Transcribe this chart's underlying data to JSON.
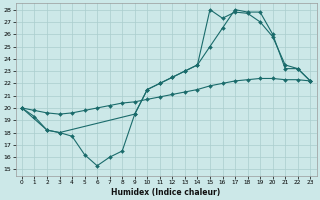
{
  "xlabel": "Humidex (Indice chaleur)",
  "bg_color": "#cce8e8",
  "grid_color": "#aacece",
  "line_color": "#1a6b6b",
  "xlim": [
    -0.5,
    23.5
  ],
  "ylim": [
    14.5,
    28.5
  ],
  "xticks": [
    0,
    1,
    2,
    3,
    4,
    5,
    6,
    7,
    8,
    9,
    10,
    11,
    12,
    13,
    14,
    15,
    16,
    17,
    18,
    19,
    20,
    21,
    22,
    23
  ],
  "yticks": [
    15,
    16,
    17,
    18,
    19,
    20,
    21,
    22,
    23,
    24,
    25,
    26,
    27,
    28
  ],
  "line1_x": [
    0,
    2,
    3,
    9,
    10,
    11,
    12,
    13,
    14,
    15,
    16,
    17,
    18,
    19,
    20,
    21,
    22,
    23
  ],
  "line1_y": [
    20.0,
    18.2,
    18.0,
    19.5,
    21.5,
    22.0,
    22.5,
    23.0,
    23.5,
    28.0,
    27.3,
    27.8,
    27.7,
    27.0,
    25.8,
    23.5,
    23.2,
    22.2
  ],
  "line2_x": [
    0,
    1,
    2,
    3,
    4,
    5,
    6,
    7,
    8,
    9,
    10,
    11,
    12,
    13,
    14,
    15,
    16,
    17,
    18,
    19,
    20,
    21,
    22,
    23
  ],
  "line2_y": [
    20.0,
    19.8,
    19.6,
    19.5,
    19.6,
    19.8,
    20.0,
    20.2,
    20.4,
    20.5,
    20.7,
    20.9,
    21.1,
    21.3,
    21.5,
    21.8,
    22.0,
    22.2,
    22.3,
    22.4,
    22.4,
    22.3,
    22.3,
    22.2
  ],
  "line3_x": [
    0,
    1,
    2,
    3,
    4,
    5,
    6,
    7,
    8,
    9,
    10,
    11,
    12,
    13,
    14,
    15,
    16,
    17,
    18,
    19,
    20,
    21,
    22,
    23
  ],
  "line3_y": [
    20.0,
    19.3,
    18.2,
    18.0,
    17.7,
    16.2,
    15.3,
    16.0,
    16.5,
    19.5,
    21.5,
    22.0,
    22.5,
    23.0,
    23.5,
    25.0,
    26.5,
    28.0,
    27.8,
    27.8,
    26.0,
    23.2,
    23.2,
    22.2
  ]
}
